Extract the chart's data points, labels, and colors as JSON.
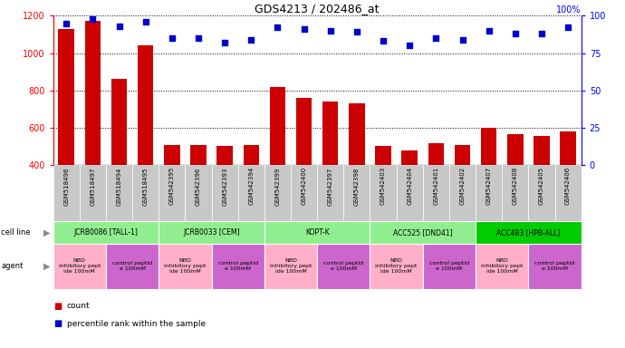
{
  "title": "GDS4213 / 202486_at",
  "samples": [
    "GSM518496",
    "GSM518497",
    "GSM518494",
    "GSM518495",
    "GSM542395",
    "GSM542396",
    "GSM542393",
    "GSM542394",
    "GSM542399",
    "GSM542400",
    "GSM542397",
    "GSM542398",
    "GSM542403",
    "GSM542404",
    "GSM542401",
    "GSM542402",
    "GSM542407",
    "GSM542408",
    "GSM542405",
    "GSM542406"
  ],
  "counts": [
    1130,
    1170,
    860,
    1040,
    510,
    510,
    505,
    510,
    820,
    760,
    740,
    730,
    505,
    480,
    520,
    510,
    600,
    565,
    555,
    580
  ],
  "percentiles": [
    95,
    98,
    93,
    96,
    85,
    85,
    82,
    84,
    92,
    91,
    90,
    89,
    83,
    80,
    85,
    84,
    90,
    88,
    88,
    92
  ],
  "ylim_left": [
    400,
    1200
  ],
  "ylim_right": [
    0,
    100
  ],
  "yticks_left": [
    400,
    600,
    800,
    1000,
    1200
  ],
  "yticks_right": [
    0,
    25,
    50,
    75,
    100
  ],
  "cell_lines": [
    {
      "label": "JCRB0086 [TALL-1]",
      "start": 0,
      "end": 4,
      "color": "#90EE90"
    },
    {
      "label": "JCRB0033 [CEM]",
      "start": 4,
      "end": 8,
      "color": "#90EE90"
    },
    {
      "label": "KOPT-K",
      "start": 8,
      "end": 12,
      "color": "#90EE90"
    },
    {
      "label": "ACC525 [DND41]",
      "start": 12,
      "end": 16,
      "color": "#90EE90"
    },
    {
      "label": "ACC483 [HPB-ALL]",
      "start": 16,
      "end": 20,
      "color": "#00CC00"
    }
  ],
  "agents": [
    {
      "label": "NBD\ninhibitory pept\nide 100mM",
      "start": 0,
      "end": 2,
      "color": "#FFB0C8"
    },
    {
      "label": "control peptid\ne 100mM",
      "start": 2,
      "end": 4,
      "color": "#CC66CC"
    },
    {
      "label": "NBD\ninhibitory pept\nide 100mM",
      "start": 4,
      "end": 6,
      "color": "#FFB0C8"
    },
    {
      "label": "control peptid\ne 100mM",
      "start": 6,
      "end": 8,
      "color": "#CC66CC"
    },
    {
      "label": "NBD\ninhibitory pept\nide 100mM",
      "start": 8,
      "end": 10,
      "color": "#FFB0C8"
    },
    {
      "label": "control peptid\ne 100mM",
      "start": 10,
      "end": 12,
      "color": "#CC66CC"
    },
    {
      "label": "NBD\ninhibitory pept\nide 100mM",
      "start": 12,
      "end": 14,
      "color": "#FFB0C8"
    },
    {
      "label": "control peptid\ne 100mM",
      "start": 14,
      "end": 16,
      "color": "#CC66CC"
    },
    {
      "label": "NBD\ninhibitory pept\nide 100mM",
      "start": 16,
      "end": 18,
      "color": "#FFB0C8"
    },
    {
      "label": "control peptid\ne 100mM",
      "start": 18,
      "end": 20,
      "color": "#CC66CC"
    }
  ],
  "bar_color": "#CC0000",
  "scatter_color": "#0000CC",
  "legend_count_color": "#CC0000",
  "legend_percentile_color": "#0000CC",
  "bg_color": "#FFFFFF",
  "tick_area_color": "#C8C8C8",
  "left_label_color": "#888888",
  "fig_width": 6.9,
  "fig_height": 3.84,
  "dpi": 100
}
